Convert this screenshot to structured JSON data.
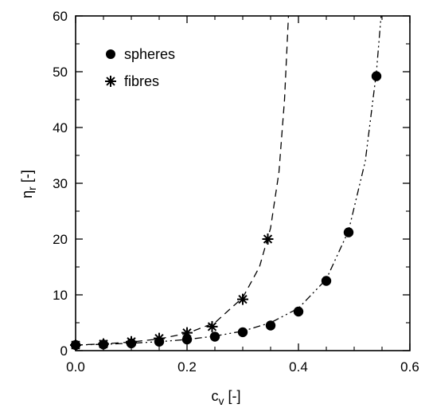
{
  "chart_data": {
    "type": "scatter",
    "xlabel_main": "c",
    "xlabel_sub": "v",
    "xlabel_unit": " [-]",
    "ylabel_main": "η",
    "ylabel_sub": "r",
    "ylabel_unit": " [-]",
    "xlim": [
      0.0,
      0.6
    ],
    "ylim": [
      0,
      60
    ],
    "xticks": [
      {
        "value": 0.0,
        "label": "0.0"
      },
      {
        "value": 0.2,
        "label": "0.2"
      },
      {
        "value": 0.4,
        "label": "0.4"
      },
      {
        "value": 0.6,
        "label": "0.6"
      }
    ],
    "yticks": [
      {
        "value": 0,
        "label": "0"
      },
      {
        "value": 10,
        "label": "10"
      },
      {
        "value": 20,
        "label": "20"
      },
      {
        "value": 30,
        "label": "30"
      },
      {
        "value": 40,
        "label": "40"
      },
      {
        "value": 50,
        "label": "50"
      },
      {
        "value": 60,
        "label": "60"
      }
    ],
    "grid": false,
    "legend_position": "top-left",
    "series": [
      {
        "name": "spheres",
        "marker": "filled-circle",
        "line_style": "dash-dot-dot",
        "x": [
          0.0,
          0.05,
          0.1,
          0.15,
          0.2,
          0.25,
          0.3,
          0.35,
          0.4,
          0.45,
          0.49,
          0.54
        ],
        "y": [
          1.0,
          1.1,
          1.3,
          1.6,
          2.0,
          2.5,
          3.3,
          4.5,
          7.0,
          12.5,
          21.2,
          49.2
        ],
        "fit_x": [
          0.0,
          0.05,
          0.1,
          0.15,
          0.2,
          0.25,
          0.3,
          0.35,
          0.4,
          0.45,
          0.49,
          0.52,
          0.54,
          0.55
        ],
        "fit_y": [
          1.0,
          1.14,
          1.33,
          1.6,
          2.0,
          2.6,
          3.5,
          5.0,
          7.6,
          12.8,
          21.5,
          34.0,
          50.0,
          62.0
        ]
      },
      {
        "name": "fibres",
        "marker": "asterisk",
        "line_style": "dashed",
        "x": [
          0.0,
          0.05,
          0.1,
          0.15,
          0.2,
          0.245,
          0.3,
          0.345
        ],
        "y": [
          1.0,
          1.2,
          1.6,
          2.2,
          3.2,
          4.3,
          9.2,
          20.0
        ],
        "fit_x": [
          0.0,
          0.05,
          0.1,
          0.15,
          0.2,
          0.25,
          0.3,
          0.33,
          0.35,
          0.365,
          0.375,
          0.383
        ],
        "fit_y": [
          1.0,
          1.2,
          1.55,
          2.1,
          3.1,
          5.0,
          9.5,
          15.0,
          22.0,
          32.0,
          45.0,
          62.0
        ]
      }
    ]
  }
}
